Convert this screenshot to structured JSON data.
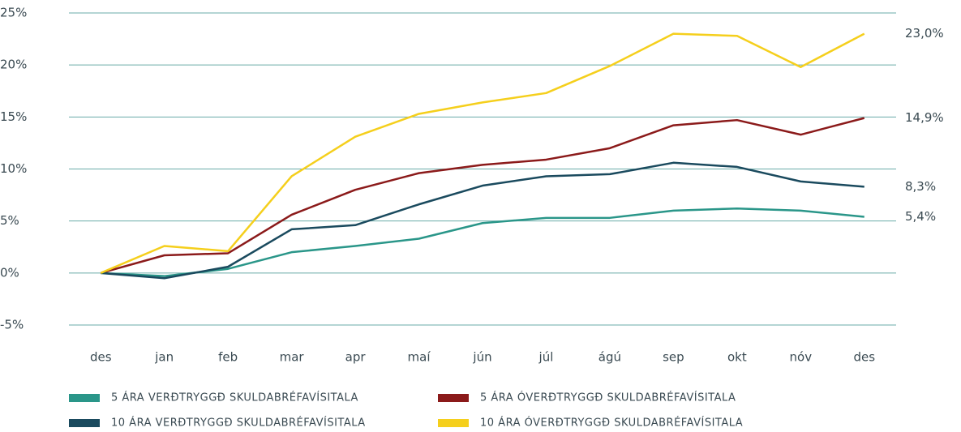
{
  "chart_data": {
    "type": "line",
    "categories": [
      "des",
      "jan",
      "feb",
      "mar",
      "apr",
      "maí",
      "jún",
      "júl",
      "ágú",
      "sep",
      "okt",
      "nóv",
      "des"
    ],
    "series": [
      {
        "name": "5 ÁRA VERÐTRYGGÐ SKULDABRÉFAVÍSITALA",
        "color": "#2a9689",
        "values": [
          0,
          -0.3,
          0.4,
          2.0,
          2.6,
          3.3,
          4.8,
          5.3,
          5.3,
          6.0,
          6.2,
          6.0,
          5.4
        ],
        "value_labels": [
          null,
          null,
          null,
          null,
          null,
          null,
          null,
          null,
          null,
          null,
          null,
          null,
          "5,4%"
        ]
      },
      {
        "name": "5 ÁRA ÓVERÐTRYGGÐ SKULDABRÉFAVÍSITALA",
        "color": "#8b1a1a",
        "values": [
          0,
          1.7,
          1.9,
          5.6,
          8.0,
          9.6,
          10.4,
          10.9,
          12.0,
          14.2,
          14.7,
          13.3,
          14.9
        ],
        "value_labels": [
          null,
          null,
          null,
          null,
          null,
          null,
          null,
          null,
          null,
          null,
          null,
          null,
          "14,9%"
        ]
      },
      {
        "name": "10 ÁRA VERÐTRYGGÐ SKULDABRÉFAVÍSITALA",
        "color": "#1a4a5e",
        "values": [
          0,
          -0.5,
          0.6,
          4.2,
          4.6,
          6.6,
          8.4,
          9.3,
          9.5,
          10.6,
          10.2,
          8.8,
          8.3
        ],
        "value_labels": [
          null,
          null,
          null,
          null,
          null,
          null,
          null,
          null,
          null,
          null,
          null,
          null,
          "8,3%"
        ]
      },
      {
        "name": "10 ÁRA ÓVERÐTRYGGÐ SKULDABRÉFAVÍSITALA",
        "color": "#f5cf1c",
        "values": [
          0,
          2.6,
          2.1,
          9.3,
          13.1,
          15.3,
          16.4,
          17.3,
          19.9,
          23.0,
          22.8,
          19.8,
          23.0
        ],
        "value_labels": [
          null,
          null,
          null,
          null,
          null,
          null,
          null,
          null,
          null,
          null,
          null,
          null,
          "23,0%"
        ]
      }
    ],
    "ylim": [
      -5,
      25
    ],
    "yticks": [
      {
        "value": -5,
        "label": "-5%"
      },
      {
        "value": 0,
        "label": "0%"
      },
      {
        "value": 5,
        "label": "5%"
      },
      {
        "value": 10,
        "label": "10%"
      },
      {
        "value": 15,
        "label": "15%"
      },
      {
        "value": 20,
        "label": "20%"
      },
      {
        "value": 25,
        "label": "25%"
      }
    ],
    "grid": true
  }
}
